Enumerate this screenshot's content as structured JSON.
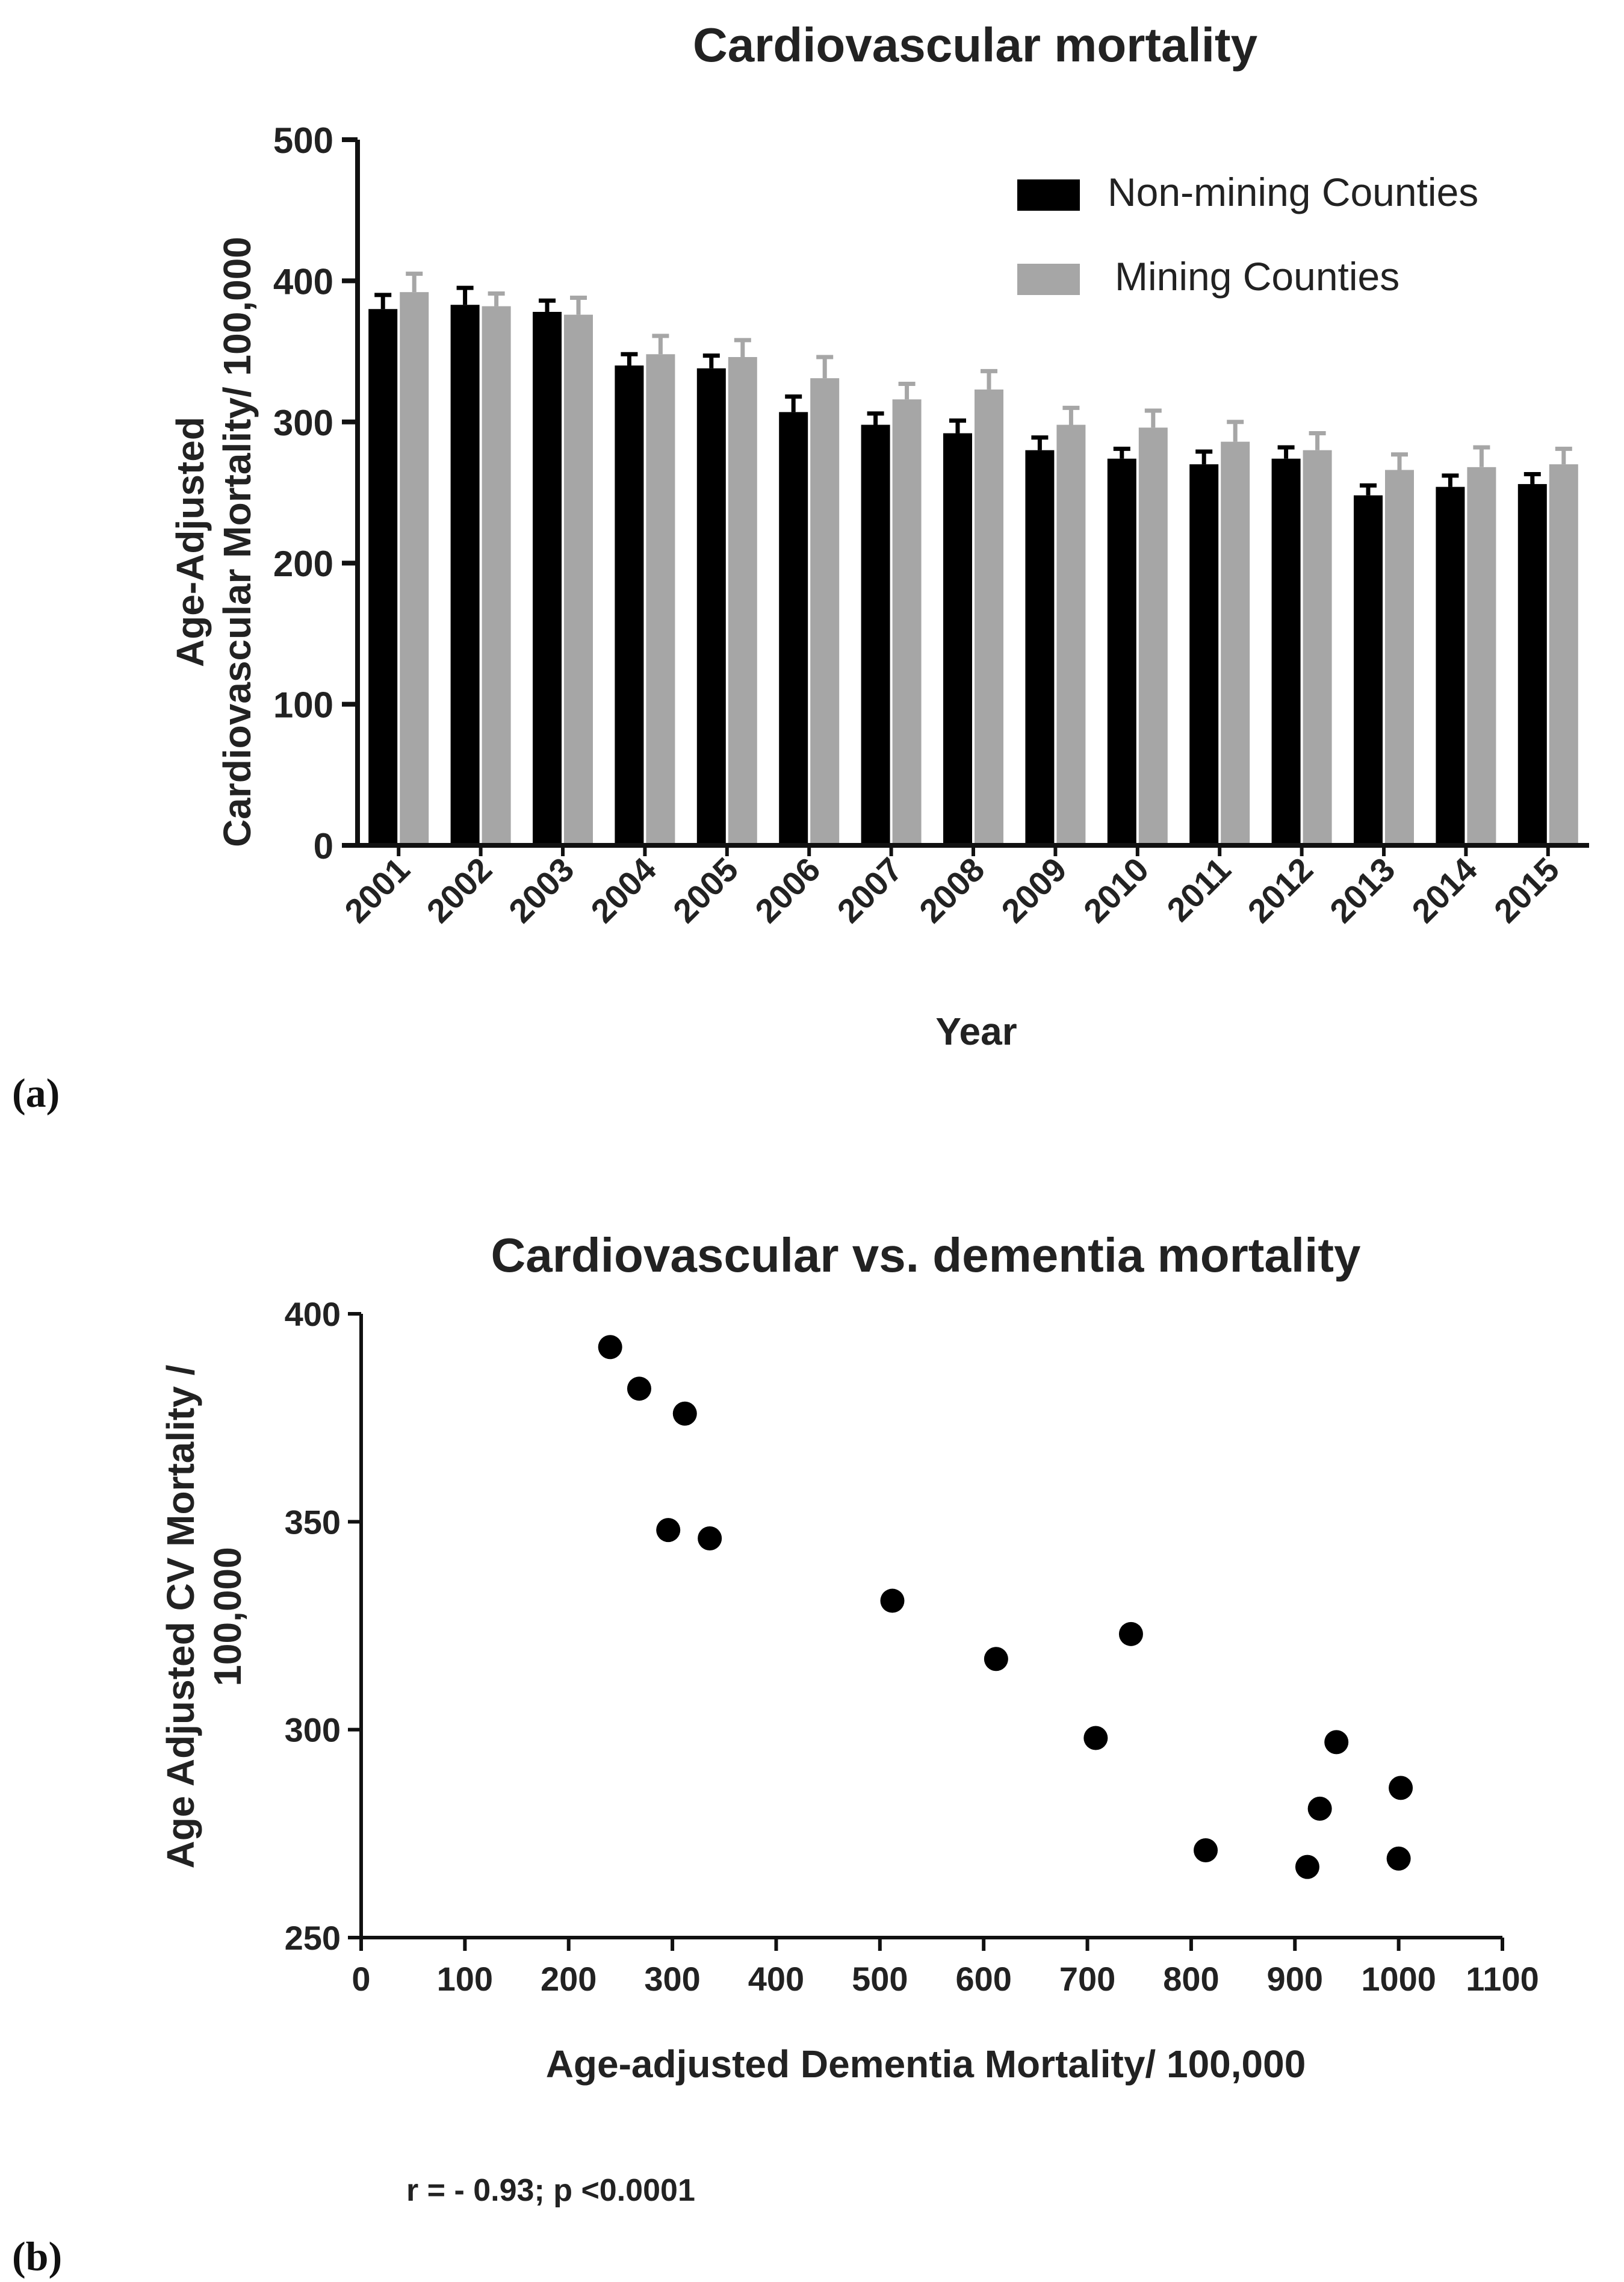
{
  "panel_a_label": "(a)",
  "panel_b_label": "(b)",
  "stat_text": "r = - 0.93; p <0.0001",
  "colors": {
    "non_mining": "#000000",
    "mining": "#a6a6a6",
    "axis": "#111111"
  },
  "chart_data": [
    {
      "type": "bar",
      "title": "Cardiovascular mortality",
      "xlabel": "Year",
      "ylabel_lines": [
        "Age-Adjusted",
        "Cardiovascular Mortality/ 100,000"
      ],
      "ylim": [
        0,
        500
      ],
      "yticks": [
        0,
        100,
        200,
        300,
        400,
        500
      ],
      "legend_position": "top-right",
      "categories": [
        "2001",
        "2002",
        "2003",
        "2004",
        "2005",
        "2006",
        "2007",
        "2008",
        "2009",
        "2010",
        "2011",
        "2012",
        "2013",
        "2014",
        "2015"
      ],
      "series": [
        {
          "name": "Non-mining Counties",
          "values": [
            380,
            383,
            378,
            340,
            338,
            307,
            298,
            292,
            280,
            274,
            270,
            274,
            248,
            254,
            256
          ],
          "errors": [
            10,
            12,
            8,
            8,
            9,
            11,
            8,
            9,
            9,
            7,
            9,
            8,
            7,
            8,
            7
          ]
        },
        {
          "name": "Mining Counties",
          "values": [
            392,
            382,
            376,
            348,
            346,
            331,
            316,
            323,
            298,
            296,
            286,
            280,
            266,
            268,
            270
          ],
          "errors": [
            13,
            9,
            12,
            13,
            12,
            15,
            11,
            13,
            12,
            12,
            14,
            12,
            11,
            14,
            11
          ]
        }
      ]
    },
    {
      "type": "scatter",
      "title": "Cardiovascular vs. dementia mortality",
      "xlabel": "Age-adjusted Dementia Mortality/ 100,000",
      "ylabel_lines": [
        "Age Adjusted CV Mortality /",
        "100,000"
      ],
      "xlim": [
        0,
        1100
      ],
      "ylim": [
        250,
        400
      ],
      "xticks": [
        0,
        100,
        200,
        300,
        400,
        500,
        600,
        700,
        800,
        900,
        1000,
        1100
      ],
      "yticks": [
        250,
        300,
        350,
        400
      ],
      "points": [
        {
          "x": 240,
          "y": 392
        },
        {
          "x": 268,
          "y": 382
        },
        {
          "x": 312,
          "y": 376
        },
        {
          "x": 296,
          "y": 348
        },
        {
          "x": 336,
          "y": 346
        },
        {
          "x": 512,
          "y": 331
        },
        {
          "x": 612,
          "y": 317
        },
        {
          "x": 742,
          "y": 323
        },
        {
          "x": 708,
          "y": 298
        },
        {
          "x": 940,
          "y": 297
        },
        {
          "x": 924,
          "y": 281
        },
        {
          "x": 1002,
          "y": 286
        },
        {
          "x": 814,
          "y": 271
        },
        {
          "x": 912,
          "y": 267
        },
        {
          "x": 1000,
          "y": 269
        }
      ]
    }
  ]
}
